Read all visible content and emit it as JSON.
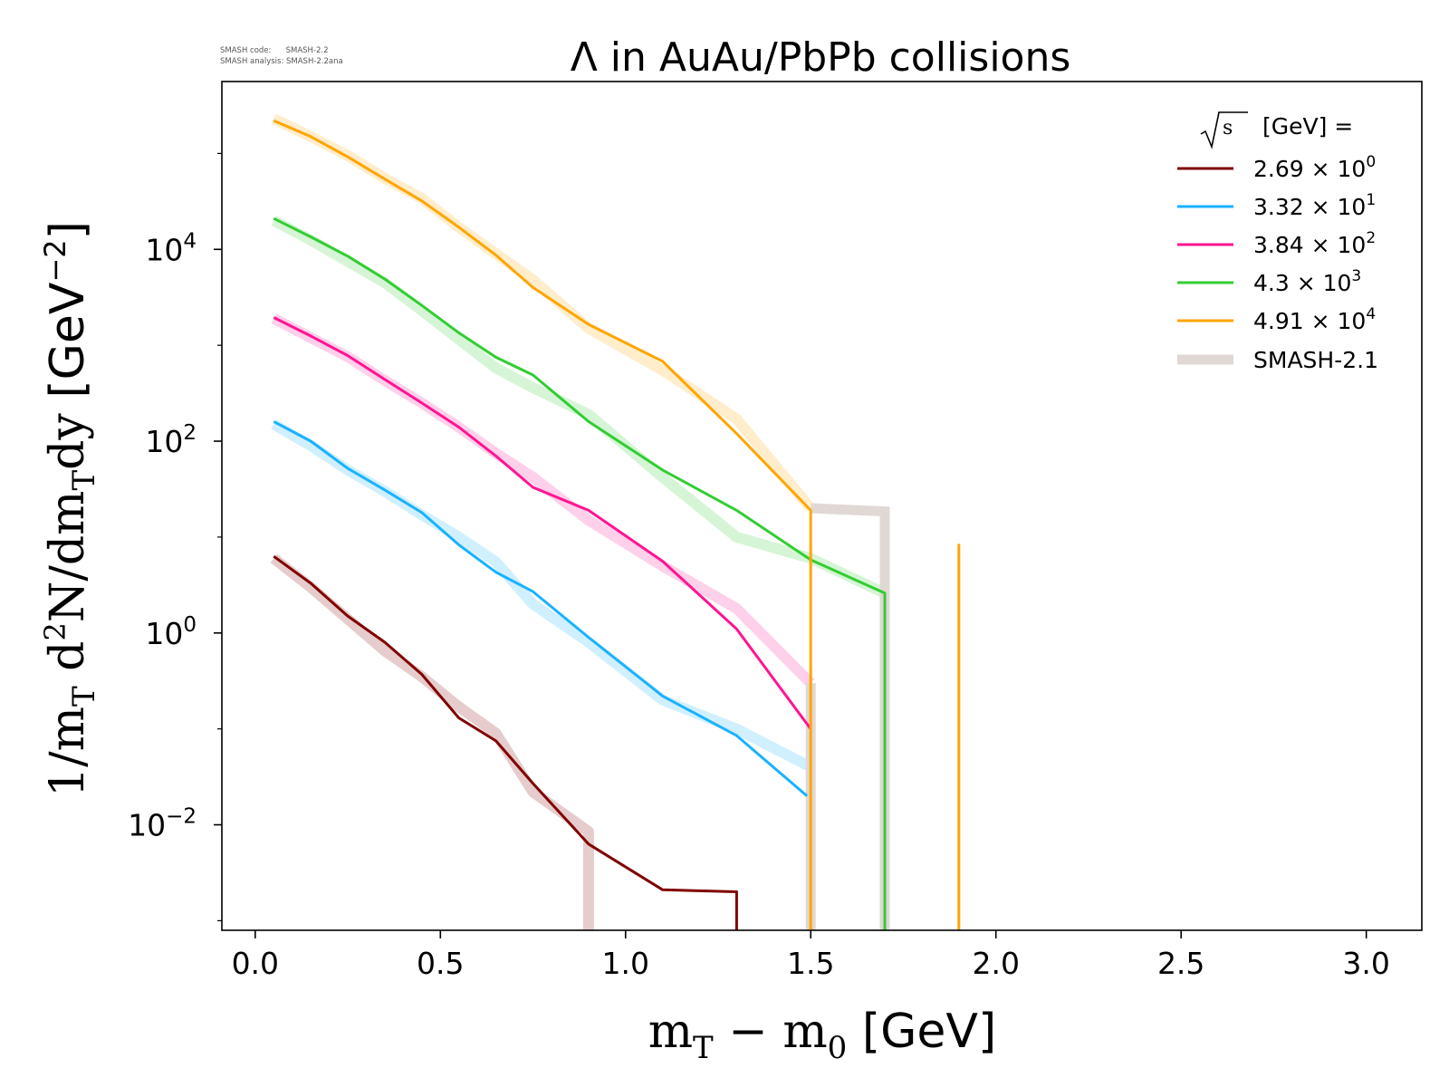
{
  "meta_text": {
    "code": "SMASH code:      SMASH-2.2",
    "analysis": "SMASH analysis: SMASH-2.2ana"
  },
  "chart_data": {
    "type": "line",
    "title": "Λ in AuAu/PbPb collisions",
    "xlabel": "m_T − m_0 [GeV]",
    "ylabel": "1/m_T d²N/dm_T dy [GeV⁻²]",
    "xlim": [
      -0.09,
      3.15
    ],
    "ylim_log10": [
      -3.1,
      5.75
    ],
    "yscale": "log",
    "grid": false,
    "legend_position": "top-right",
    "legend_title": "√s [GeV] =",
    "x_ticks": [
      "0.0",
      "0.5",
      "1.0",
      "1.5",
      "2.0",
      "2.5",
      "3.0"
    ],
    "y_ticks": [
      {
        "base": "10",
        "exp": "4",
        "log": 4
      },
      {
        "base": "10",
        "exp": "2",
        "log": 2
      },
      {
        "base": "10",
        "exp": "0",
        "log": 0
      },
      {
        "base": "10",
        "exp": "−2",
        "log": -2
      }
    ],
    "series": [
      {
        "name": "2.69 × 10⁰",
        "label_mantissa": "2.69",
        "label_exp": "0",
        "color": "#800000",
        "x": [
          0.05,
          0.15,
          0.25,
          0.35,
          0.45,
          0.55,
          0.65,
          0.75,
          0.9,
          1.1,
          1.3,
          1.3
        ],
        "y": [
          6.3,
          3.3,
          1.5,
          0.8,
          0.37,
          0.13,
          0.075,
          0.027,
          0.0063,
          0.0021,
          0.002,
          0.0008
        ],
        "ref_x": [
          0.05,
          0.15,
          0.25,
          0.35,
          0.45,
          0.55,
          0.65,
          0.75,
          0.9,
          0.9
        ],
        "ref_y": [
          6.0,
          3.0,
          1.4,
          0.65,
          0.35,
          0.17,
          0.09,
          0.022,
          0.0085,
          0.0008
        ]
      },
      {
        "name": "3.32 × 10¹",
        "label_mantissa": "3.32",
        "label_exp": "1",
        "color": "#1ab2ff",
        "x": [
          0.05,
          0.15,
          0.25,
          0.35,
          0.45,
          0.55,
          0.65,
          0.75,
          0.9,
          1.1,
          1.3,
          1.49
        ],
        "y": [
          160,
          100,
          52,
          31,
          18,
          8.3,
          4.3,
          2.7,
          0.9,
          0.22,
          0.085,
          0.02
        ],
        "ref_x": [
          0.05,
          0.15,
          0.25,
          0.35,
          0.45,
          0.55,
          0.65,
          0.75,
          0.9,
          1.1,
          1.3,
          1.5
        ],
        "ref_y": [
          150,
          90,
          50,
          30,
          17,
          10,
          5.5,
          2.0,
          0.8,
          0.2,
          0.1,
          0.04
        ]
      },
      {
        "name": "3.84 × 10²",
        "label_mantissa": "3.84",
        "label_exp": "2",
        "color": "#ff1493",
        "x": [
          0.05,
          0.15,
          0.25,
          0.35,
          0.45,
          0.55,
          0.65,
          0.75,
          0.9,
          1.1,
          1.3,
          1.5
        ],
        "y": [
          1950,
          1250,
          780,
          440,
          250,
          140,
          70,
          33,
          19,
          5.6,
          1.1,
          0.1
        ],
        "ref_x": [
          0.05,
          0.15,
          0.25,
          0.35,
          0.45,
          0.55,
          0.65,
          0.75,
          0.9,
          1.1,
          1.3,
          1.5
        ],
        "ref_y": [
          1900,
          1200,
          760,
          430,
          250,
          140,
          75,
          42,
          15,
          5.0,
          1.8,
          0.3
        ]
      },
      {
        "name": "4.3 × 10³",
        "label_mantissa": "4.3",
        "label_exp": "3",
        "color": "#32cd32",
        "x": [
          0.05,
          0.15,
          0.25,
          0.35,
          0.45,
          0.55,
          0.65,
          0.75,
          0.9,
          1.1,
          1.3,
          1.5,
          1.7,
          1.7
        ],
        "y": [
          21000,
          13500,
          8500,
          4900,
          2600,
          1350,
          750,
          490,
          160,
          50,
          19,
          5.8,
          2.6,
          0.0008
        ],
        "ref_x": [
          0.05,
          0.15,
          0.25,
          0.35,
          0.45,
          0.55,
          0.65,
          0.75,
          0.9,
          1.1,
          1.3,
          1.5,
          1.7
        ],
        "ref_y": [
          20000,
          12500,
          7500,
          4500,
          2300,
          1150,
          580,
          360,
          190,
          42,
          10,
          6.0,
          2.6
        ]
      },
      {
        "name": "4.91 × 10⁴",
        "label_mantissa": "4.91",
        "label_exp": "4",
        "color": "#ffa500",
        "x": [
          0.05,
          0.15,
          0.25,
          0.35,
          0.45,
          0.55,
          0.65,
          0.75,
          0.9,
          1.1,
          1.3,
          1.5,
          1.5
        ],
        "y": [
          220000,
          150000,
          92000,
          54000,
          32000,
          17000,
          8700,
          4000,
          1650,
          680,
          120,
          19,
          0.0008
        ],
        "ref_x": [
          0.05,
          0.15,
          0.25,
          0.35,
          0.45,
          0.55,
          0.65,
          0.75,
          0.9,
          1.1,
          1.3,
          1.5
        ],
        "ref_y": [
          230000,
          150000,
          95000,
          55000,
          34000,
          17000,
          9000,
          4800,
          1500,
          550,
          170,
          20
        ]
      }
    ],
    "extra_lines": [
      {
        "color": "#ffa500",
        "x": [
          1.9,
          1.9
        ],
        "y": [
          0.0008,
          8.5
        ]
      }
    ],
    "reference": {
      "name": "SMASH-2.1",
      "color": "#e0d8d4",
      "shelf": {
        "x": [
          1.5,
          1.7,
          1.7
        ],
        "y": [
          20,
          18.5,
          0.0008
        ]
      },
      "drops": [
        {
          "x": [
            1.5,
            1.5
          ],
          "y": [
            0.3,
            0.0008
          ]
        }
      ]
    }
  }
}
